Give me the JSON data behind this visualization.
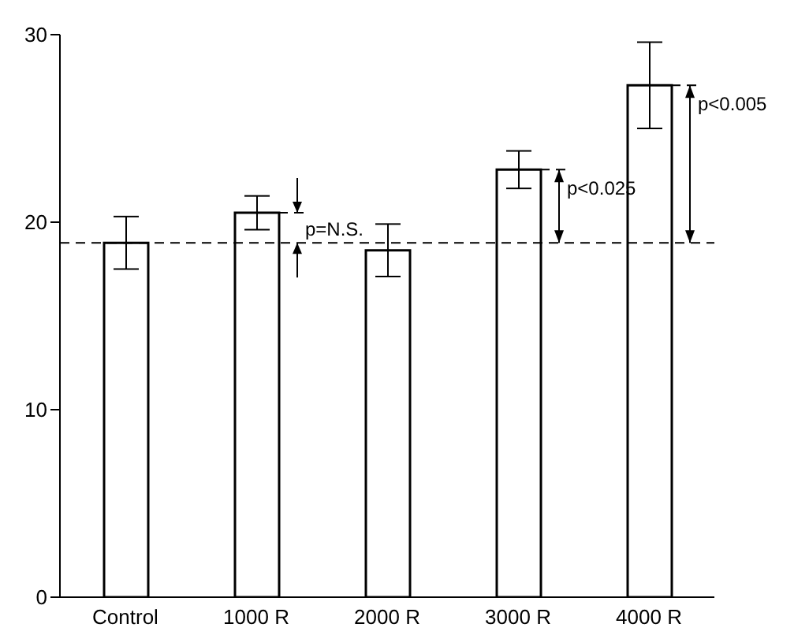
{
  "chart_data": {
    "type": "bar",
    "categories": [
      "Control",
      "1000 R",
      "2000 R",
      "3000 R",
      "4000 R"
    ],
    "values": [
      18.9,
      20.5,
      18.5,
      22.8,
      27.3
    ],
    "errors": [
      1.4,
      0.9,
      1.4,
      1.0,
      2.3
    ],
    "color": "#000000",
    "ylim": [
      0,
      30
    ],
    "yticks": [
      0,
      10,
      20,
      30
    ],
    "ref_lines": [
      {
        "axis": "y",
        "value": 18.9,
        "line_style": "dashed",
        "color": "#000000"
      }
    ],
    "annotations": [
      {
        "text": "p=N.S.",
        "x": "1000 R",
        "y": 20.5
      },
      {
        "text": "p<0.025",
        "x": "3000 R",
        "y": 22.8
      },
      {
        "text": "p<0.005",
        "x": "4000 R",
        "y": 27.3
      }
    ]
  }
}
